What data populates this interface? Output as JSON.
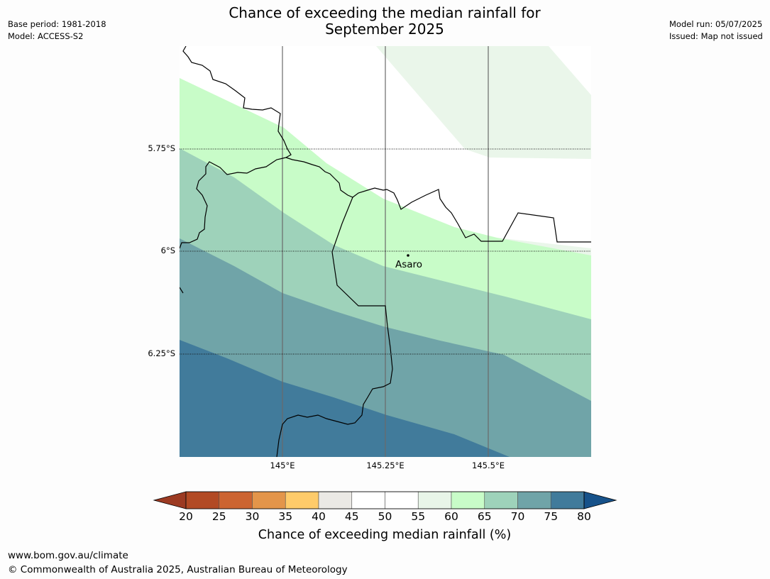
{
  "header": {
    "title_line1": "Chance of exceeding the median rainfall for",
    "title_line2": "September 2025",
    "base_period": "Base period: 1981-2018",
    "model": "Model: ACCESS-S2",
    "model_run": "Model run: 05/07/2025",
    "issued": "Issued: Map not issued"
  },
  "map": {
    "latitude_labels": [
      "5.75°S",
      "6°S",
      "6.25°S"
    ],
    "longitude_labels": [
      "145°E",
      "145.25°E",
      "145.5°E"
    ],
    "place": "Asaro",
    "bands_percent": [
      "55-60",
      "60-65",
      "65-70",
      "70-75",
      "75-80"
    ]
  },
  "colorbar": {
    "ticks": [
      "20",
      "25",
      "30",
      "35",
      "40",
      "45",
      "50",
      "55",
      "60",
      "65",
      "70",
      "75",
      "80"
    ],
    "colors": [
      "#9c3a22",
      "#b24a24",
      "#cc6431",
      "#e3954a",
      "#fecb6a",
      "#ebe9e5",
      "#ffffff",
      "#ffffff",
      "#e8f5e8",
      "#c8fcc8",
      "#9ed2ba",
      "#70a4a8",
      "#417b9b"
    ],
    "below_color": "#9c3a22",
    "above_color": "#17528a",
    "label": "Chance of exceeding median rainfall (%)"
  },
  "footer": {
    "url": "www.bom.gov.au/climate",
    "copyright": "© Commonwealth of Australia 2025, Australian Bureau of Meteorology"
  }
}
